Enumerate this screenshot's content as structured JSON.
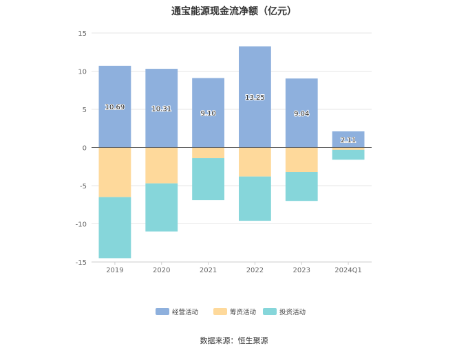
{
  "chart_data": {
    "type": "bar",
    "stacked": true,
    "title": "通宝能源现金流净额（亿元）",
    "categories": [
      "2019",
      "2020",
      "2021",
      "2022",
      "2023",
      "2024Q1"
    ],
    "series": [
      {
        "name": "经营活动",
        "color": "#8eb0dd",
        "values": [
          10.69,
          10.31,
          9.1,
          13.25,
          9.04,
          2.11
        ],
        "show_labels": true
      },
      {
        "name": "筹资活动",
        "color": "#fed99b",
        "values": [
          -6.5,
          -4.7,
          -1.4,
          -3.8,
          -3.2,
          -0.3
        ],
        "show_labels": false
      },
      {
        "name": "投资活动",
        "color": "#86d6da",
        "values": [
          -8.0,
          -6.3,
          -5.5,
          -5.8,
          -3.8,
          -1.3
        ],
        "show_labels": false
      }
    ],
    "ylim": [
      -15,
      15
    ],
    "yticks": [
      15,
      10,
      5,
      0,
      -5,
      -10,
      -15
    ],
    "grid": true,
    "legend_position": "bottom"
  },
  "source_text": "数据来源：恒生聚源"
}
